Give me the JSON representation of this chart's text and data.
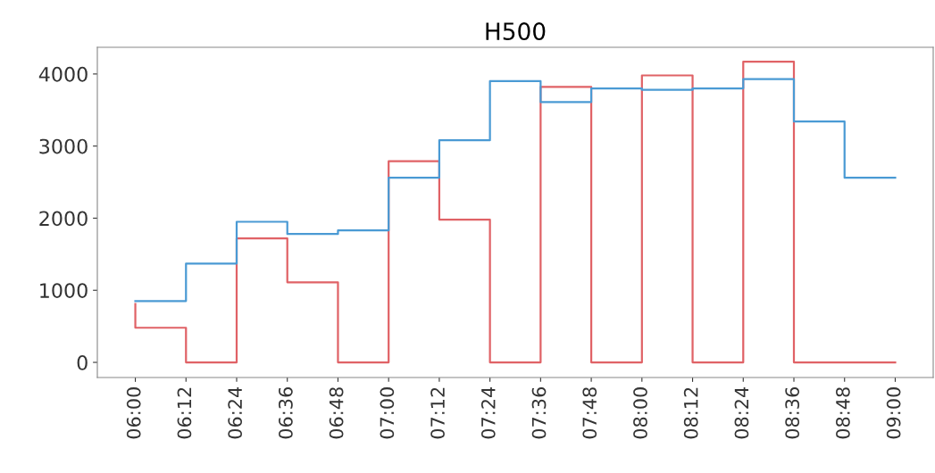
{
  "chart_data": {
    "type": "step",
    "title": "H500",
    "x": [
      6.0,
      6.2,
      6.4,
      6.6,
      6.8,
      7.0,
      7.2,
      7.4,
      7.6,
      7.8,
      8.0,
      8.2,
      8.4,
      8.6,
      8.8,
      9.0
    ],
    "series": [
      {
        "color": "#e06266",
        "values": [
          810,
          480,
          0,
          1720,
          1110,
          0,
          2790,
          1980,
          0,
          3820,
          0,
          3980,
          0,
          4170,
          0,
          0
        ]
      },
      {
        "color": "#4a9ad4",
        "values": [
          850,
          850,
          1370,
          1950,
          1780,
          1830,
          2560,
          3080,
          3900,
          3610,
          3800,
          3780,
          3800,
          3930,
          3340,
          2560
        ]
      }
    ],
    "xlim": [
      5.85,
      9.15
    ],
    "xticks": [
      {
        "value": 6.0,
        "label": "06:00"
      },
      {
        "value": 6.2,
        "label": "06:12"
      },
      {
        "value": 6.4,
        "label": "06:24"
      },
      {
        "value": 6.6,
        "label": "06:36"
      },
      {
        "value": 6.8,
        "label": "06:48"
      },
      {
        "value": 7.0,
        "label": "07:00"
      },
      {
        "value": 7.2,
        "label": "07:12"
      },
      {
        "value": 7.4,
        "label": "07:24"
      },
      {
        "value": 7.6,
        "label": "07:36"
      },
      {
        "value": 7.8,
        "label": "07:48"
      },
      {
        "value": 8.0,
        "label": "08:00"
      },
      {
        "value": 8.2,
        "label": "08:12"
      },
      {
        "value": 8.4,
        "label": "08:24"
      },
      {
        "value": 8.6,
        "label": "08:36"
      },
      {
        "value": 8.8,
        "label": "08:48"
      },
      {
        "value": 9.0,
        "label": "09:00"
      }
    ],
    "ylim": [
      -210,
      4370
    ],
    "yticks": [
      0,
      1000,
      2000,
      3000,
      4000
    ],
    "grid": false
  }
}
